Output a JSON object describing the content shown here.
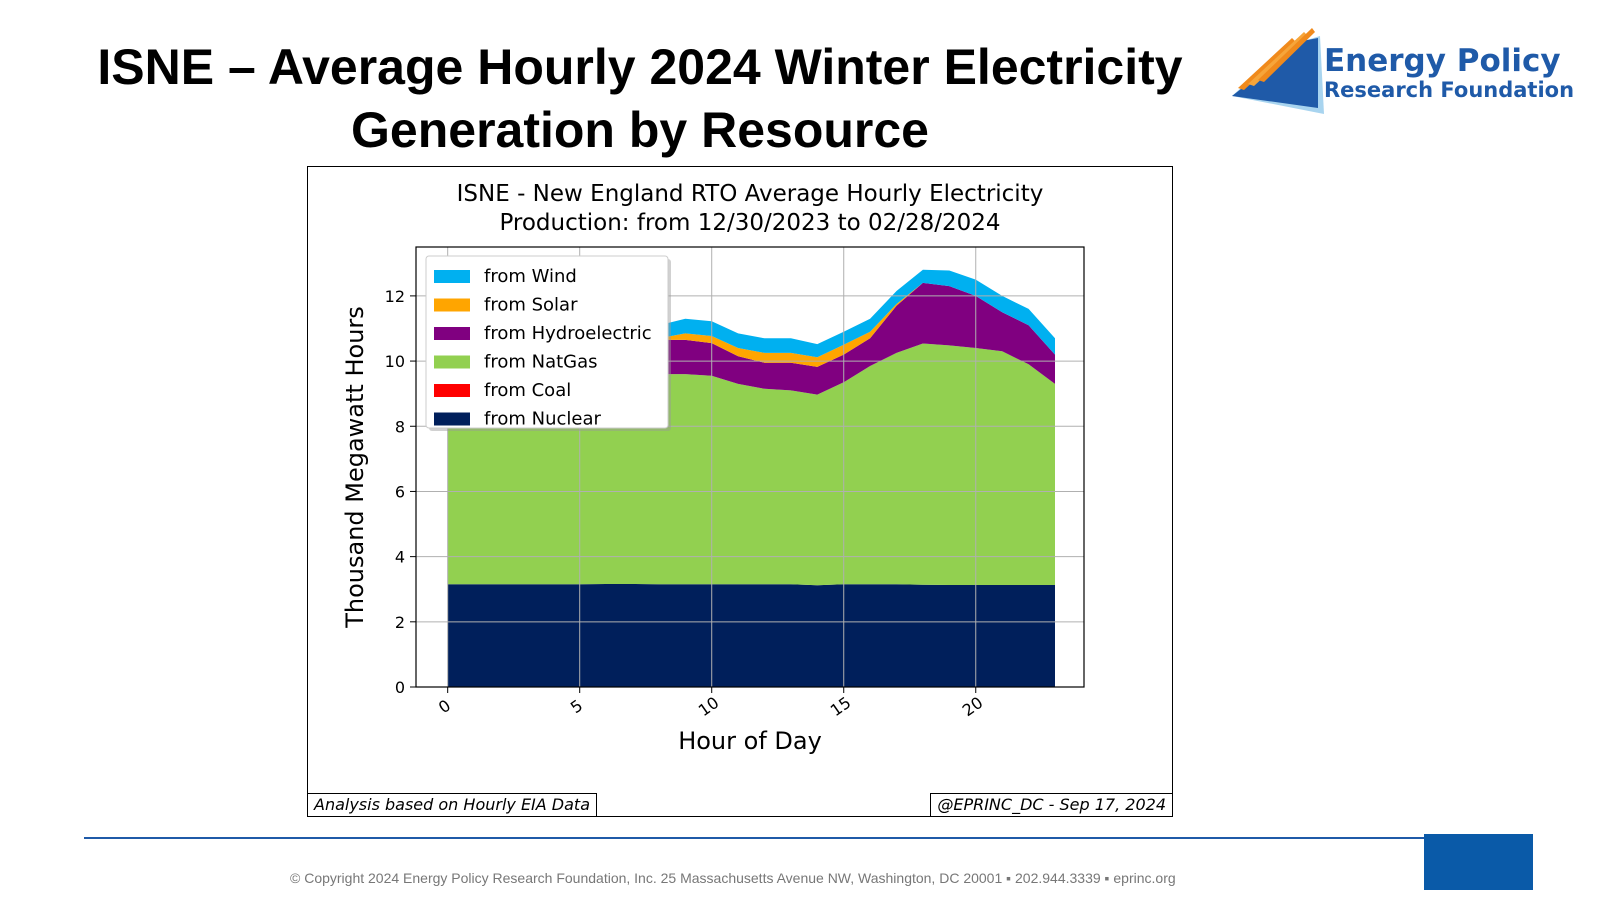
{
  "slide": {
    "title_line1": "ISNE – Average Hourly 2024 Winter Electricity",
    "title_line2": "Generation by Resource",
    "logo_line1": "Energy Policy",
    "logo_line2": "Research Foundation",
    "logo_icon": "orange-blue-swoosh-logo-icon",
    "footer_copyright": "© Copyright 2024 Energy Policy Research Foundation, Inc. 25 Massachusetts Avenue NW, Washington, DC 20001 ▪ 202.944.3339 ▪ eprinc.org",
    "note_left": "Analysis based on Hourly EIA Data",
    "note_right": "@EPRINC_DC - Sep 17, 2024",
    "colors": {
      "brand_blue": "#1f5aa8",
      "accent_orange": "#f08a1c"
    }
  },
  "chart_data": {
    "type": "area",
    "stacked": true,
    "title_line1": "ISNE - New England RTO Average Hourly Electricity",
    "title_line2": "Production: from 12/30/2023 to 02/28/2024",
    "xlabel": "Hour of Day",
    "ylabel": "Thousand Megawatt Hours",
    "xlim": [
      -1.2,
      24.1
    ],
    "ylim": [
      0,
      13.5
    ],
    "xticks": [
      "0",
      "5",
      "10",
      "15",
      "20"
    ],
    "xtick_values": [
      0,
      5,
      10,
      15,
      20
    ],
    "yticks": [
      "0",
      "2",
      "4",
      "6",
      "8",
      "10",
      "12"
    ],
    "ytick_values": [
      0,
      2,
      4,
      6,
      8,
      10,
      12
    ],
    "grid": true,
    "legend_position": "upper-left",
    "x": [
      0,
      1,
      2,
      3,
      4,
      5,
      6,
      7,
      8,
      9,
      10,
      11,
      12,
      13,
      14,
      15,
      16,
      17,
      18,
      19,
      20,
      21,
      22,
      23
    ],
    "series": [
      {
        "name": "from Nuclear",
        "color": "#001f5b",
        "values": [
          3.15,
          3.15,
          3.15,
          3.15,
          3.15,
          3.15,
          3.16,
          3.16,
          3.15,
          3.15,
          3.15,
          3.15,
          3.15,
          3.15,
          3.12,
          3.15,
          3.15,
          3.15,
          3.14,
          3.13,
          3.13,
          3.13,
          3.13,
          3.13
        ]
      },
      {
        "name": "from Coal",
        "color": "#ff0000",
        "values": [
          0,
          0,
          0,
          0,
          0,
          0,
          0,
          0,
          0,
          0,
          0,
          0,
          0,
          0,
          0,
          0,
          0,
          0,
          0,
          0,
          0,
          0,
          0,
          0
        ]
      },
      {
        "name": "from NatGas",
        "color": "#92d050",
        "values": [
          5.65,
          5.7,
          5.7,
          5.75,
          5.85,
          5.95,
          6.1,
          6.25,
          6.45,
          6.45,
          6.4,
          6.15,
          6.0,
          5.95,
          5.85,
          6.2,
          6.7,
          7.1,
          7.4,
          7.35,
          7.27,
          7.17,
          6.77,
          6.17
        ]
      },
      {
        "name": "from Hydroelectric",
        "color": "#800080",
        "values": [
          0.85,
          0.8,
          0.8,
          0.8,
          0.8,
          0.8,
          0.85,
          0.9,
          1.05,
          1.05,
          1.0,
          0.85,
          0.8,
          0.85,
          0.85,
          0.85,
          0.85,
          1.45,
          1.86,
          1.82,
          1.6,
          1.2,
          1.2,
          0.9
        ]
      },
      {
        "name": "from Solar",
        "color": "#ffa500",
        "values": [
          0,
          0,
          0,
          0,
          0,
          0,
          0,
          0,
          0.05,
          0.2,
          0.22,
          0.25,
          0.3,
          0.3,
          0.3,
          0.3,
          0.2,
          0.05,
          0,
          0,
          0,
          0,
          0,
          0
        ]
      },
      {
        "name": "from Wind",
        "color": "#00b0f0",
        "values": [
          0.35,
          0.35,
          0.35,
          0.35,
          0.35,
          0.35,
          0.35,
          0.35,
          0.4,
          0.45,
          0.45,
          0.45,
          0.45,
          0.45,
          0.4,
          0.4,
          0.4,
          0.4,
          0.4,
          0.48,
          0.5,
          0.5,
          0.5,
          0.5
        ]
      }
    ],
    "legend_order": [
      "from Wind",
      "from Solar",
      "from Hydroelectric",
      "from NatGas",
      "from Coal",
      "from Nuclear"
    ]
  }
}
